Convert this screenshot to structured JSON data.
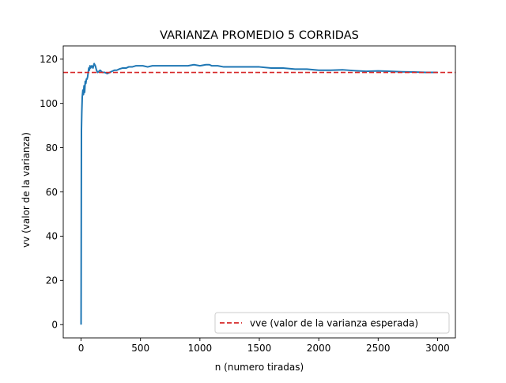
{
  "chart_data": {
    "type": "line",
    "title": "VARIANZA PROMEDIO 5 CORRIDAS",
    "xlabel": "n (numero tiradas)",
    "ylabel": "vv (valor de la varianza)",
    "xlim": [
      -150,
      3150
    ],
    "ylim": [
      -6,
      126
    ],
    "x_ticks": [
      0,
      500,
      1000,
      1500,
      2000,
      2500,
      3000
    ],
    "x_tick_labels": [
      "0",
      "500",
      "1000",
      "1500",
      "2000",
      "2500",
      "3000"
    ],
    "y_ticks": [
      0,
      20,
      40,
      60,
      80,
      100,
      120
    ],
    "y_tick_labels": [
      "0",
      "20",
      "40",
      "60",
      "80",
      "100",
      "120"
    ],
    "grid": false,
    "legend_position": "lower-right",
    "series": [
      {
        "color": "#1f77b4",
        "style": "solid",
        "x": [
          0,
          3,
          6,
          10,
          15,
          20,
          25,
          30,
          35,
          40,
          45,
          50,
          55,
          60,
          65,
          70,
          75,
          80,
          90,
          100,
          110,
          120,
          130,
          140,
          160,
          180,
          200,
          220,
          240,
          260,
          280,
          300,
          320,
          350,
          380,
          400,
          430,
          460,
          490,
          520,
          560,
          600,
          650,
          700,
          750,
          800,
          850,
          900,
          950,
          1000,
          1050,
          1080,
          1100,
          1150,
          1200,
          1300,
          1400,
          1450,
          1500,
          1600,
          1700,
          1800,
          1900,
          2000,
          2100,
          2200,
          2300,
          2400,
          2500,
          2600,
          2700,
          2800,
          2900,
          3000
        ],
        "values": [
          0,
          88,
          96,
          103,
          106,
          104,
          108,
          105,
          110,
          109,
          111,
          111,
          112,
          114,
          116,
          115,
          117,
          116,
          117,
          116,
          118,
          117,
          115,
          114,
          115,
          114,
          114,
          113.5,
          114,
          114.5,
          115,
          115,
          115.5,
          116,
          116,
          116.5,
          116.5,
          117,
          117,
          117,
          116.5,
          117,
          117,
          117,
          117,
          117,
          117,
          117,
          117.5,
          117,
          117.5,
          117.5,
          117,
          117,
          116.5,
          116.5,
          116.5,
          116.5,
          116.5,
          116,
          116,
          115.5,
          115.5,
          115,
          115,
          115.2,
          114.8,
          114.5,
          114.7,
          114.5,
          114.3,
          114.2,
          114,
          114
        ]
      },
      {
        "name": "vve (valor de la varianza esperada)",
        "color": "#d62728",
        "style": "dashed",
        "y": 114
      }
    ]
  }
}
